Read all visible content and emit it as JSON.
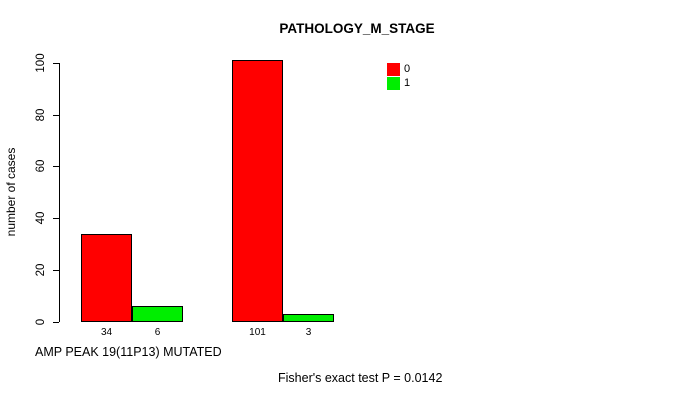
{
  "chart_data": {
    "type": "bar",
    "title": "PATHOLOGY_M_STAGE",
    "ylabel": "number of cases",
    "xlabel": "AMP PEAK 19(11P13) MUTATED",
    "footer": "Fisher's exact test P = 0.0142",
    "ylim": [
      0,
      100
    ],
    "yticks": [
      0,
      20,
      40,
      60,
      80,
      100
    ],
    "grid": false,
    "legend_position": "top-right",
    "series": [
      {
        "name": "0",
        "color": "#ff0000",
        "values": [
          34,
          101
        ]
      },
      {
        "name": "1",
        "color": "#00ee00",
        "values": [
          6,
          3
        ]
      }
    ],
    "bar_labels": [
      [
        "34",
        "6"
      ],
      [
        "101",
        "3"
      ]
    ],
    "colors": {
      "background": "#ffffff",
      "axis": "#000000",
      "text": "#000000"
    }
  }
}
